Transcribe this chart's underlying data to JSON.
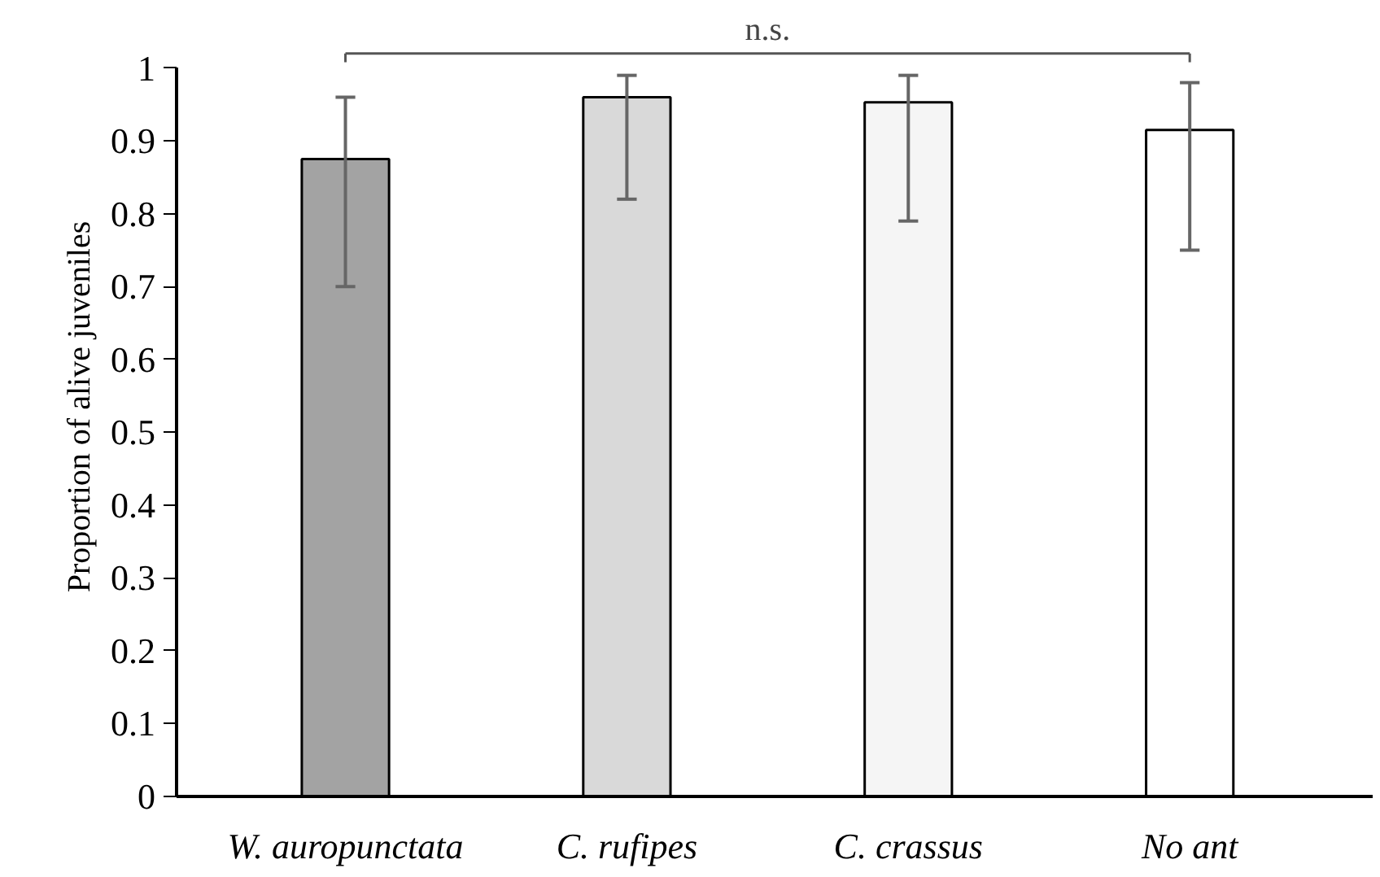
{
  "chart_data": {
    "type": "bar",
    "ylabel": "Proportion of alive juveniles",
    "categories": [
      "W. auropunctata",
      "C. rufipes",
      "C. crassus",
      "No ant"
    ],
    "values": [
      0.875,
      0.96,
      0.953,
      0.915
    ],
    "colors": [
      "#a3a3a3",
      "#d9d9d9",
      "#f5f5f5",
      "#ffffff"
    ],
    "errors": [
      [
        0.7,
        0.96
      ],
      [
        0.82,
        0.99
      ],
      [
        0.79,
        0.99
      ],
      [
        0.75,
        0.98
      ]
    ],
    "ylim": [
      0,
      1
    ],
    "yticks": [
      0,
      0.1,
      0.2,
      0.3,
      0.4,
      0.5,
      0.6,
      0.7,
      0.8,
      0.9,
      1
    ],
    "grid": false,
    "annotations": [
      "n.s."
    ]
  }
}
